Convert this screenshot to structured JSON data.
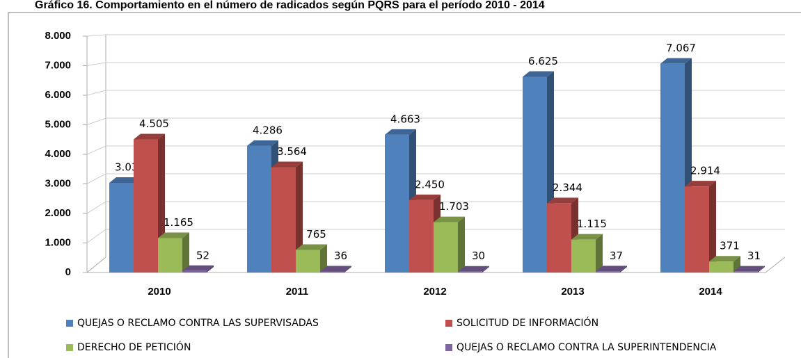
{
  "chart_data": {
    "type": "bar3d",
    "title": "Gráfico 16. Comportamiento en el número de radicados según PQRS para el período 2010 - 2014",
    "categories": [
      "2010",
      "2011",
      "2012",
      "2013",
      "2014"
    ],
    "series": [
      {
        "name": "QUEJAS O RECLAMO CONTRA LAS SUPERVISADAS",
        "color": "#4f81bd",
        "values": [
          3036,
          4286,
          4663,
          6625,
          7067
        ],
        "value_labels": [
          "3.036",
          "4.286",
          "4.663",
          "6.625",
          "7.067"
        ]
      },
      {
        "name": "SOLICITUD DE INFORMACIÓN",
        "color": "#c0504d",
        "values": [
          4505,
          3564,
          2450,
          2344,
          2914
        ],
        "value_labels": [
          "4.505",
          "3.564",
          "2.450",
          "2.344",
          "2.914"
        ]
      },
      {
        "name": "DERECHO DE PETICIÓN",
        "color": "#9bbb59",
        "values": [
          1165,
          765,
          1703,
          1115,
          371
        ],
        "value_labels": [
          "1.165",
          "765",
          "1.703",
          "1.115",
          "371"
        ]
      },
      {
        "name": "QUEJAS O RECLAMO CONTRA LA SUPERINTENDENCIA",
        "color": "#8064a2",
        "values": [
          52,
          36,
          30,
          37,
          31
        ],
        "value_labels": [
          "52",
          "36",
          "30",
          "37",
          "31"
        ]
      }
    ],
    "ylim": [
      0,
      8000
    ],
    "yticks": [
      0,
      {
        "value": 1000,
        "label": "1.000"
      },
      {
        "value": 2000,
        "label": "2.000"
      },
      {
        "value": 3000,
        "label": "3.000"
      },
      {
        "value": 4000,
        "label": "4.000"
      },
      {
        "value": 5000,
        "label": "5.000"
      },
      {
        "value": 6000,
        "label": "6.000"
      },
      {
        "value": 7000,
        "label": "7.000"
      },
      {
        "value": 8000,
        "label": "8.000"
      }
    ],
    "grid": true,
    "legend": "bottom"
  }
}
